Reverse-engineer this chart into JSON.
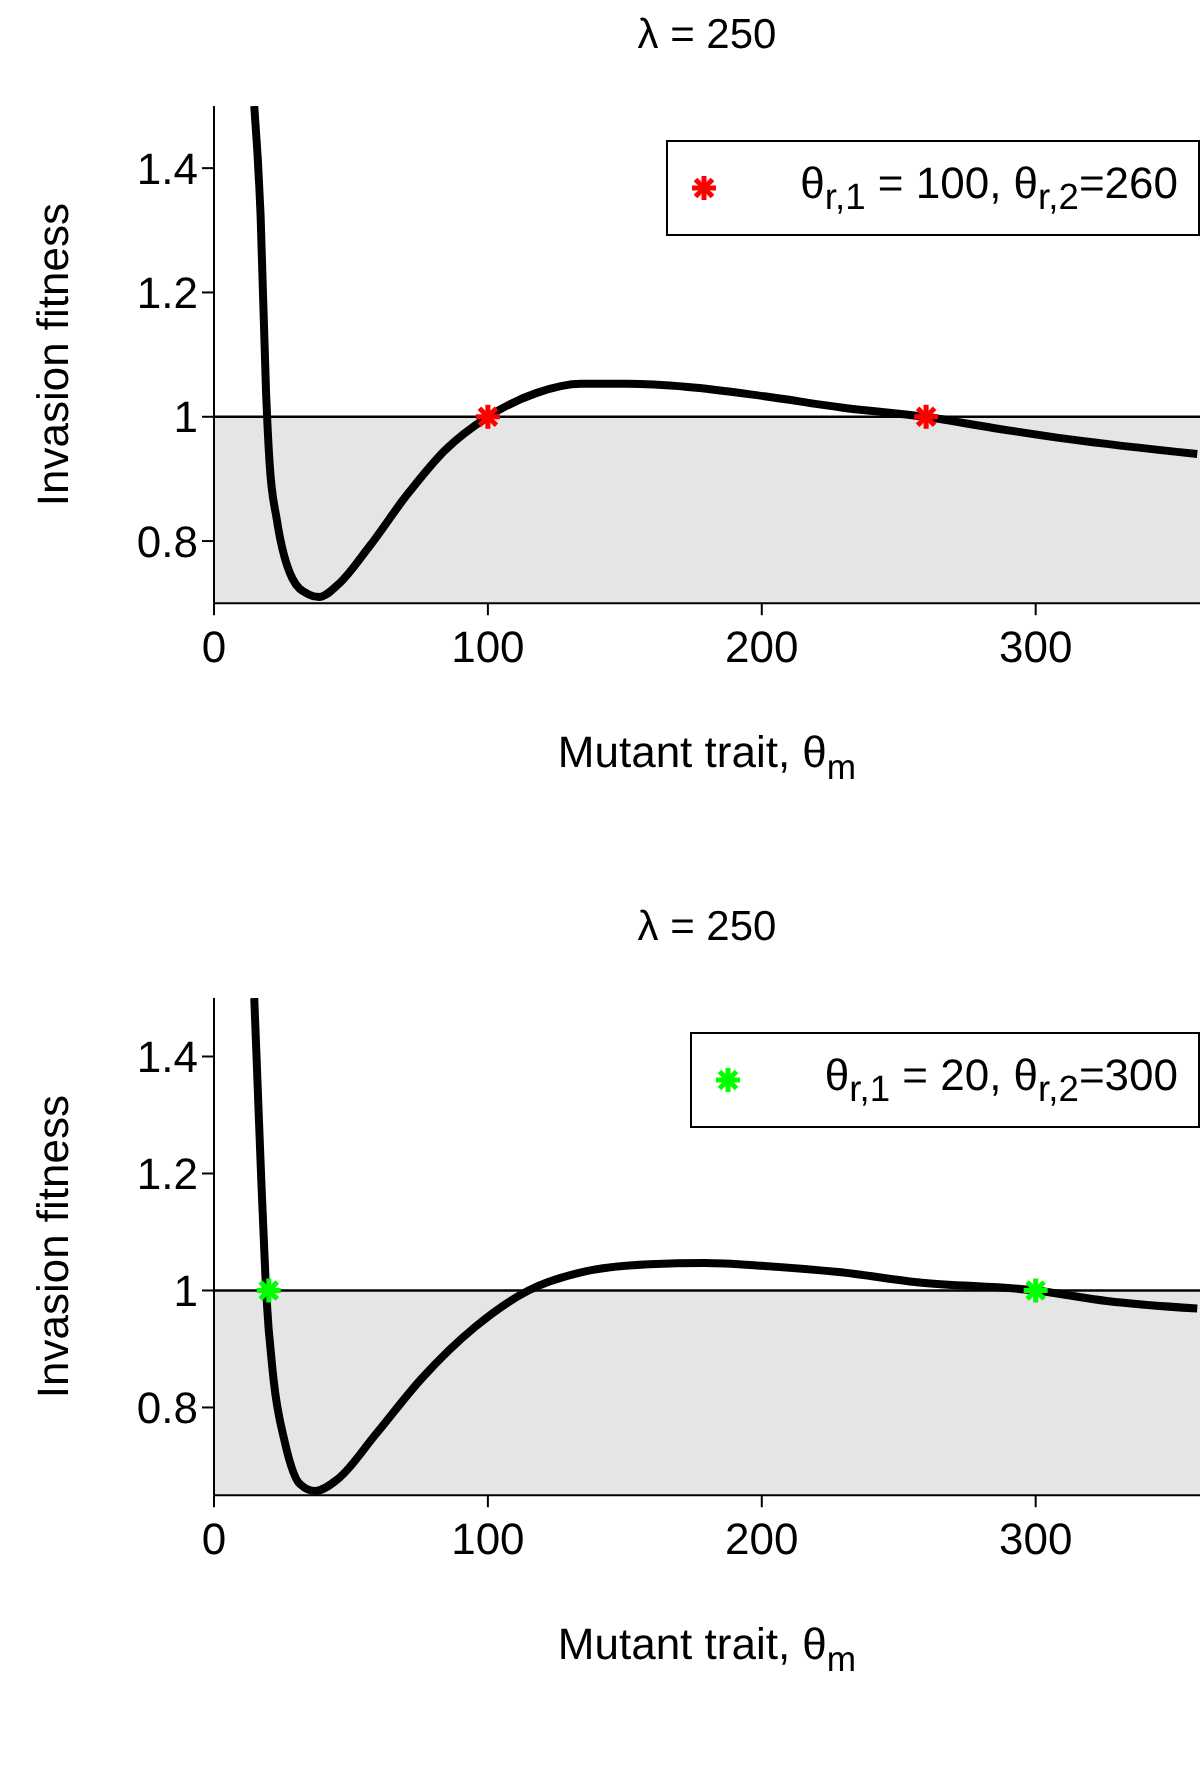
{
  "chart_data": [
    {
      "type": "line",
      "title": "λ = 250",
      "xlabel": "Mutant trait, θ$_{m}$",
      "ylabel": "Invasion fitness",
      "xlim": [
        0,
        360
      ],
      "xticks": [
        0,
        100,
        200,
        300
      ],
      "ylim": [
        0.7,
        1.5
      ],
      "yticks": [
        0.8,
        1,
        1.2,
        1.4
      ],
      "legend": "top right",
      "bands": [
        {
          "axis": "y",
          "from": 0.7,
          "to": 1,
          "color": "#e5e5e5"
        }
      ],
      "ref_lines": [
        {
          "axis": "y",
          "value": 1,
          "color": "#000000"
        }
      ],
      "series": [
        {
          "color": "#000000",
          "marker": "none",
          "x": [
            14.7,
            17,
            19,
            20.3,
            23,
            28.6,
            34.2,
            38.4,
            45.3,
            56.5,
            70.4,
            84.3,
            100,
            117.6,
            134,
            151,
            173,
            201,
            229,
            259.5,
            284.5,
            312,
            359
          ],
          "values": [
            1.5,
            1.325,
            1.04,
            0.925,
            0.833,
            0.74,
            0.715,
            0.71,
            0.73,
            0.79,
            0.874,
            0.946,
            1,
            1.038,
            1.053,
            1.053,
            1.048,
            1.033,
            1.015,
            1,
            0.982,
            0.964,
            0.94
          ]
        },
        {
          "type": "scatter",
          "name": "θ$_{r,1}$ = 100, θ$_{r,2}$=260",
          "color": "#ff0000",
          "marker": "cross",
          "x": [
            100,
            260
          ],
          "values": [
            1,
            1
          ]
        }
      ]
    },
    {
      "type": "line",
      "title": "λ = 250",
      "xlabel": "Mutant trait, θ$_{m}$",
      "ylabel": "Invasion fitness",
      "xlim": [
        0,
        360
      ],
      "xticks": [
        0,
        100,
        200,
        300
      ],
      "ylim": [
        0.65,
        1.5
      ],
      "yticks": [
        0.8,
        1,
        1.2,
        1.4
      ],
      "legend": "top right",
      "bands": [
        {
          "axis": "y",
          "from": 0.65,
          "to": 1,
          "color": "#e5e5e5"
        }
      ],
      "ref_lines": [
        {
          "axis": "y",
          "value": 1,
          "color": "#000000"
        }
      ],
      "series": [
        {
          "color": "#000000",
          "marker": "none",
          "x": [
            14.7,
            17,
            19,
            21.7,
            25.9,
            31.4,
            37,
            45.3,
            59.2,
            75.9,
            95.4,
            114.8,
            134,
            159,
            179,
            201,
            229,
            256.7,
            300,
            326,
            359
          ],
          "values": [
            1.5,
            1.22,
            1,
            0.85,
            0.74,
            0.669,
            0.657,
            0.678,
            0.755,
            0.85,
            0.938,
            1,
            1.031,
            1.045,
            1.047,
            1.042,
            1.031,
            1.014,
            1,
            0.982,
            0.969
          ]
        },
        {
          "type": "scatter",
          "name": "θ$_{r,1}$ = 20, θ$_{r,2}$=300",
          "color": "#00ff00",
          "marker": "cross",
          "x": [
            20,
            300
          ],
          "values": [
            1,
            1
          ]
        }
      ]
    }
  ]
}
